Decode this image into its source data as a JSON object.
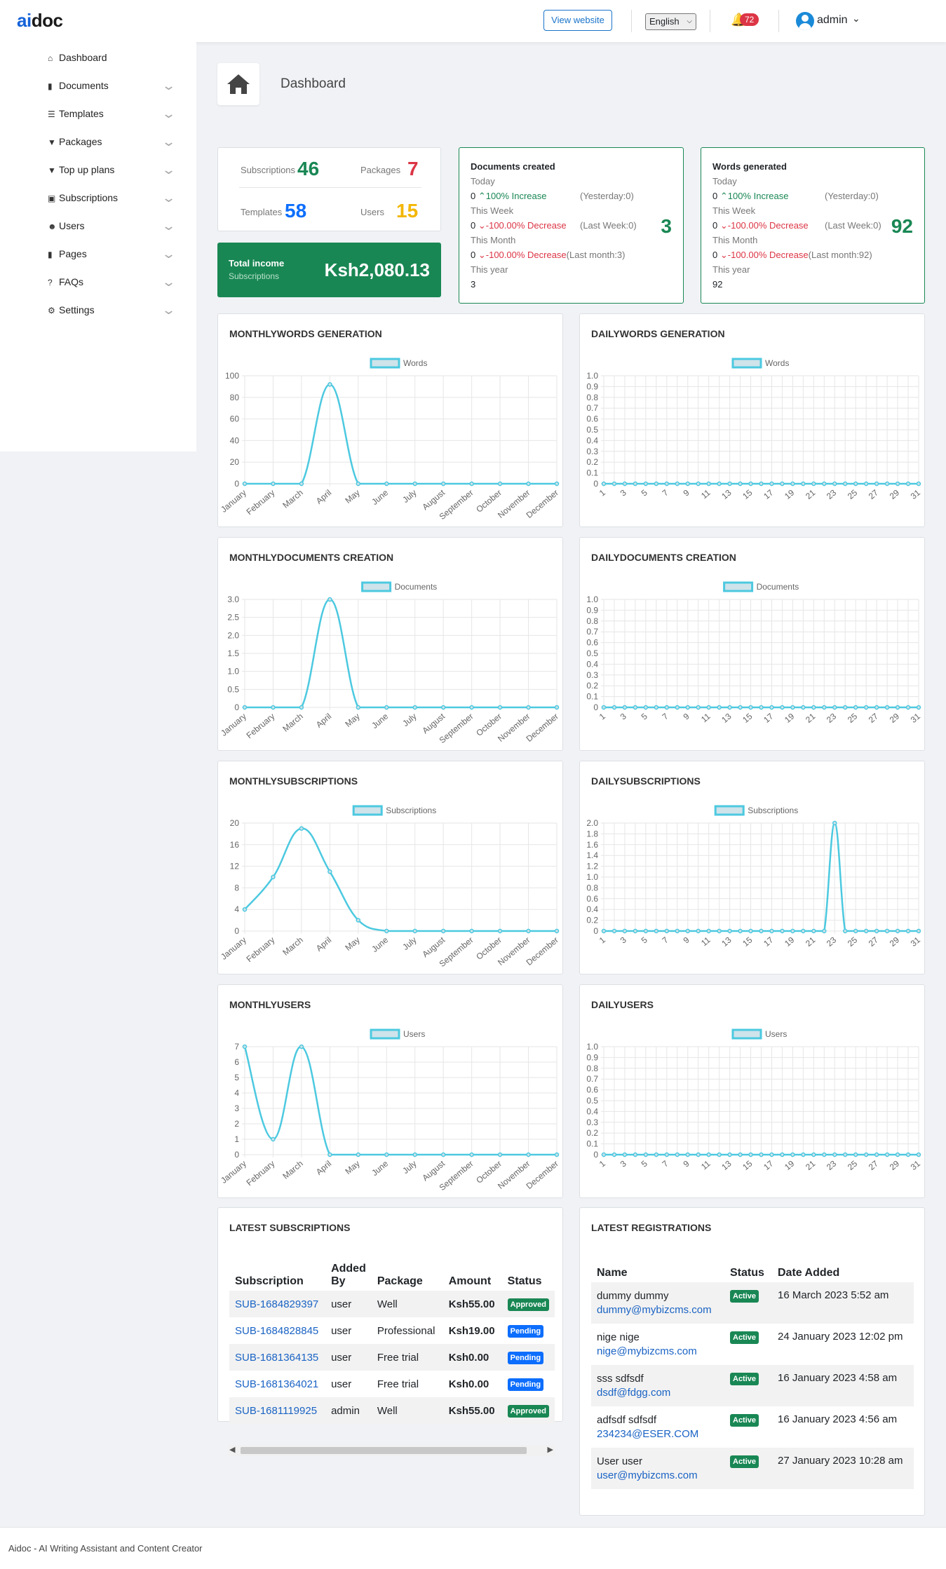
{
  "brand": {
    "ai": "ai",
    "doc": "doc"
  },
  "topbar": {
    "view_website": "View website",
    "language": "English",
    "notifications": "72",
    "user": "admin"
  },
  "sidebar": {
    "items": [
      {
        "label": "Dashboard",
        "icon": "home-icon"
      },
      {
        "label": "Documents",
        "icon": "book-icon"
      },
      {
        "label": "Templates",
        "icon": "list-icon"
      },
      {
        "label": "Packages",
        "icon": "filter-icon"
      },
      {
        "label": "Top up plans",
        "icon": "filter-icon"
      },
      {
        "label": "Subscriptions",
        "icon": "money-icon"
      },
      {
        "label": "Users",
        "icon": "users-icon"
      },
      {
        "label": "Pages",
        "icon": "book-icon"
      },
      {
        "label": "FAQs",
        "icon": "question-icon"
      },
      {
        "label": "Settings",
        "icon": "gears-icon"
      }
    ]
  },
  "page_header": {
    "title": "Dashboard"
  },
  "stats": {
    "subscriptions_label": "Subscriptions",
    "subscriptions": "46",
    "packages_label": "Packages",
    "packages": "7",
    "templates_label": "Templates",
    "templates": "58",
    "users_label": "Users",
    "users": "15"
  },
  "income": {
    "title": "Total income",
    "subtitle": "Subscriptions",
    "value": "Ksh2,080.13"
  },
  "documents_created": {
    "title": "Documents created",
    "today": "Today",
    "l1_val": "0",
    "l1_change": "100% Increase",
    "l1_prev": "(Yesterday:0)",
    "this_week": "This Week",
    "l2_val": "0",
    "l2_change": "-100.00% Decrease",
    "l2_prev": "(Last Week:0)",
    "this_month": "This Month",
    "l3_val": "0",
    "l3_change": "-100.00% Decrease",
    "l3_prev": "(Last month:3)",
    "this_year": "This year",
    "year_val": "3",
    "big": "3"
  },
  "words_generated": {
    "title": "Words generated",
    "today": "Today",
    "l1_val": "0",
    "l1_change": "100% Increase",
    "l1_prev": "(Yesterday:0)",
    "this_week": "This Week",
    "l2_val": "0",
    "l2_change": "-100.00% Decrease",
    "l2_prev": "(Last Week:0)",
    "this_month": "This Month",
    "l3_val": "0",
    "l3_change": "-100.00% Decrease",
    "l3_prev": "(Last month:92)",
    "this_year": "This year",
    "year_val": "92",
    "big": "92"
  },
  "colors": {
    "line": "#4cc9e0",
    "legend_fill": "#cfe3ea",
    "green": "#198754",
    "red": "#dc3545",
    "blue": "#0d6efd",
    "yellow": "#f2b705"
  },
  "chart_data": [
    {
      "id": "monthly-words",
      "type": "line",
      "title": "MONTHLYWORDS GENERATION",
      "legend": "Words",
      "categories": [
        "January",
        "February",
        "March",
        "April",
        "May",
        "June",
        "July",
        "August",
        "September",
        "October",
        "November",
        "December"
      ],
      "values": [
        0,
        0,
        0,
        92,
        0,
        0,
        0,
        0,
        0,
        0,
        0,
        0
      ],
      "ylim": [
        0,
        100
      ],
      "yticks": [
        "0",
        "20",
        "40",
        "60",
        "80",
        "100"
      ]
    },
    {
      "id": "daily-words",
      "type": "line",
      "title": "DAILYWORDS GENERATION",
      "legend": "Words",
      "categories": [
        "1",
        "2",
        "3",
        "4",
        "5",
        "6",
        "7",
        "8",
        "9",
        "10",
        "11",
        "12",
        "13",
        "14",
        "15",
        "16",
        "17",
        "18",
        "19",
        "20",
        "21",
        "22",
        "23",
        "24",
        "25",
        "26",
        "27",
        "28",
        "29",
        "30",
        "31"
      ],
      "values": [
        0,
        0,
        0,
        0,
        0,
        0,
        0,
        0,
        0,
        0,
        0,
        0,
        0,
        0,
        0,
        0,
        0,
        0,
        0,
        0,
        0,
        0,
        0,
        0,
        0,
        0,
        0,
        0,
        0,
        0,
        0
      ],
      "ylim": [
        0,
        1
      ],
      "yticks": [
        "0",
        "0.1",
        "0.2",
        "0.3",
        "0.4",
        "0.5",
        "0.6",
        "0.7",
        "0.8",
        "0.9",
        "1.0"
      ]
    },
    {
      "id": "monthly-documents",
      "type": "line",
      "title": "MONTHLYDOCUMENTS CREATION",
      "legend": "Documents",
      "categories": [
        "January",
        "February",
        "March",
        "April",
        "May",
        "June",
        "July",
        "August",
        "September",
        "October",
        "November",
        "December"
      ],
      "values": [
        0,
        0,
        0,
        3,
        0,
        0,
        0,
        0,
        0,
        0,
        0,
        0
      ],
      "ylim": [
        0,
        3
      ],
      "yticks": [
        "0",
        "0.5",
        "1.0",
        "1.5",
        "2.0",
        "2.5",
        "3.0"
      ]
    },
    {
      "id": "daily-documents",
      "type": "line",
      "title": "DAILYDOCUMENTS CREATION",
      "legend": "Documents",
      "categories": [
        "1",
        "2",
        "3",
        "4",
        "5",
        "6",
        "7",
        "8",
        "9",
        "10",
        "11",
        "12",
        "13",
        "14",
        "15",
        "16",
        "17",
        "18",
        "19",
        "20",
        "21",
        "22",
        "23",
        "24",
        "25",
        "26",
        "27",
        "28",
        "29",
        "30",
        "31"
      ],
      "values": [
        0,
        0,
        0,
        0,
        0,
        0,
        0,
        0,
        0,
        0,
        0,
        0,
        0,
        0,
        0,
        0,
        0,
        0,
        0,
        0,
        0,
        0,
        0,
        0,
        0,
        0,
        0,
        0,
        0,
        0,
        0
      ],
      "ylim": [
        0,
        1
      ],
      "yticks": [
        "0",
        "0.1",
        "0.2",
        "0.3",
        "0.4",
        "0.5",
        "0.6",
        "0.7",
        "0.8",
        "0.9",
        "1.0"
      ]
    },
    {
      "id": "monthly-subscriptions",
      "type": "line",
      "title": "MONTHLYSUBSCRIPTIONS",
      "legend": "Subscriptions",
      "categories": [
        "January",
        "February",
        "March",
        "April",
        "May",
        "June",
        "July",
        "August",
        "September",
        "October",
        "November",
        "December"
      ],
      "values": [
        4,
        10,
        19,
        11,
        2,
        0,
        0,
        0,
        0,
        0,
        0,
        0
      ],
      "ylim": [
        0,
        20
      ],
      "yticks": [
        "0",
        "4",
        "8",
        "12",
        "16",
        "20"
      ]
    },
    {
      "id": "daily-subscriptions",
      "type": "line",
      "title": "DAILYSUBSCRIPTIONS",
      "legend": "Subscriptions",
      "categories": [
        "1",
        "2",
        "3",
        "4",
        "5",
        "6",
        "7",
        "8",
        "9",
        "10",
        "11",
        "12",
        "13",
        "14",
        "15",
        "16",
        "17",
        "18",
        "19",
        "20",
        "21",
        "22",
        "23",
        "24",
        "25",
        "26",
        "27",
        "28",
        "29",
        "30",
        "31"
      ],
      "values": [
        0,
        0,
        0,
        0,
        0,
        0,
        0,
        0,
        0,
        0,
        0,
        0,
        0,
        0,
        0,
        0,
        0,
        0,
        0,
        0,
        0,
        0,
        2,
        0,
        0,
        0,
        0,
        0,
        0,
        0,
        0
      ],
      "ylim": [
        0,
        2
      ],
      "yticks": [
        "0",
        "0.2",
        "0.4",
        "0.6",
        "0.8",
        "1.0",
        "1.2",
        "1.4",
        "1.6",
        "1.8",
        "2.0"
      ]
    },
    {
      "id": "monthly-users",
      "type": "line",
      "title": "MONTHLYUSERS",
      "legend": "Users",
      "categories": [
        "January",
        "February",
        "March",
        "April",
        "May",
        "June",
        "July",
        "August",
        "September",
        "October",
        "November",
        "December"
      ],
      "values": [
        7,
        1,
        7,
        0,
        0,
        0,
        0,
        0,
        0,
        0,
        0,
        0
      ],
      "ylim": [
        0,
        7
      ],
      "yticks": [
        "0",
        "1",
        "2",
        "3",
        "4",
        "5",
        "6",
        "7"
      ]
    },
    {
      "id": "daily-users",
      "type": "line",
      "title": "DAILYUSERS",
      "legend": "Users",
      "categories": [
        "1",
        "2",
        "3",
        "4",
        "5",
        "6",
        "7",
        "8",
        "9",
        "10",
        "11",
        "12",
        "13",
        "14",
        "15",
        "16",
        "17",
        "18",
        "19",
        "20",
        "21",
        "22",
        "23",
        "24",
        "25",
        "26",
        "27",
        "28",
        "29",
        "30",
        "31"
      ],
      "values": [
        0,
        0,
        0,
        0,
        0,
        0,
        0,
        0,
        0,
        0,
        0,
        0,
        0,
        0,
        0,
        0,
        0,
        0,
        0,
        0,
        0,
        0,
        0,
        0,
        0,
        0,
        0,
        0,
        0,
        0,
        0
      ],
      "ylim": [
        0,
        1
      ],
      "yticks": [
        "0",
        "0.1",
        "0.2",
        "0.3",
        "0.4",
        "0.5",
        "0.6",
        "0.7",
        "0.8",
        "0.9",
        "1.0"
      ]
    }
  ],
  "latest_subscriptions": {
    "title": "LATEST SUBSCRIPTIONS",
    "headers": [
      "Subscription",
      "Added By",
      "Package",
      "Amount",
      "Status"
    ],
    "rows": [
      {
        "id": "SUB-1684829397",
        "by": "user",
        "package": "Well",
        "amount": "Ksh55.00",
        "status": "Approved"
      },
      {
        "id": "SUB-1684828845",
        "by": "user",
        "package": "Professional",
        "amount": "Ksh19.00",
        "status": "Pending"
      },
      {
        "id": "SUB-1681364135",
        "by": "user",
        "package": "Free trial",
        "amount": "Ksh0.00",
        "status": "Pending"
      },
      {
        "id": "SUB-1681364021",
        "by": "user",
        "package": "Free trial",
        "amount": "Ksh0.00",
        "status": "Pending"
      },
      {
        "id": "SUB-1681119925",
        "by": "admin",
        "package": "Well",
        "amount": "Ksh55.00",
        "status": "Approved"
      }
    ]
  },
  "latest_registrations": {
    "title": "LATEST REGISTRATIONS",
    "headers": [
      "Name",
      "Status",
      "Date Added"
    ],
    "rows": [
      {
        "name": "dummy dummy",
        "email": "dummy@mybizcms.com",
        "status": "Active",
        "date": "16 March 2023 5:52 am"
      },
      {
        "name": "nige nige",
        "email": "nige@mybizcms.com",
        "status": "Active",
        "date": "24 January 2023 12:02 pm"
      },
      {
        "name": "sss sdfsdf",
        "email": "dsdf@fdgg.com",
        "status": "Active",
        "date": "16 January 2023 4:58 am"
      },
      {
        "name": "adfsdf sdfsdf",
        "email": "234234@ESER.COM",
        "status": "Active",
        "date": "16 January 2023 4:56 am"
      },
      {
        "name": "User user",
        "email": "user@mybizcms.com",
        "status": "Active",
        "date": "27 January 2023 10:28 am"
      }
    ]
  },
  "footer": {
    "text": "Aidoc - AI Writing Assistant and Content Creator"
  }
}
